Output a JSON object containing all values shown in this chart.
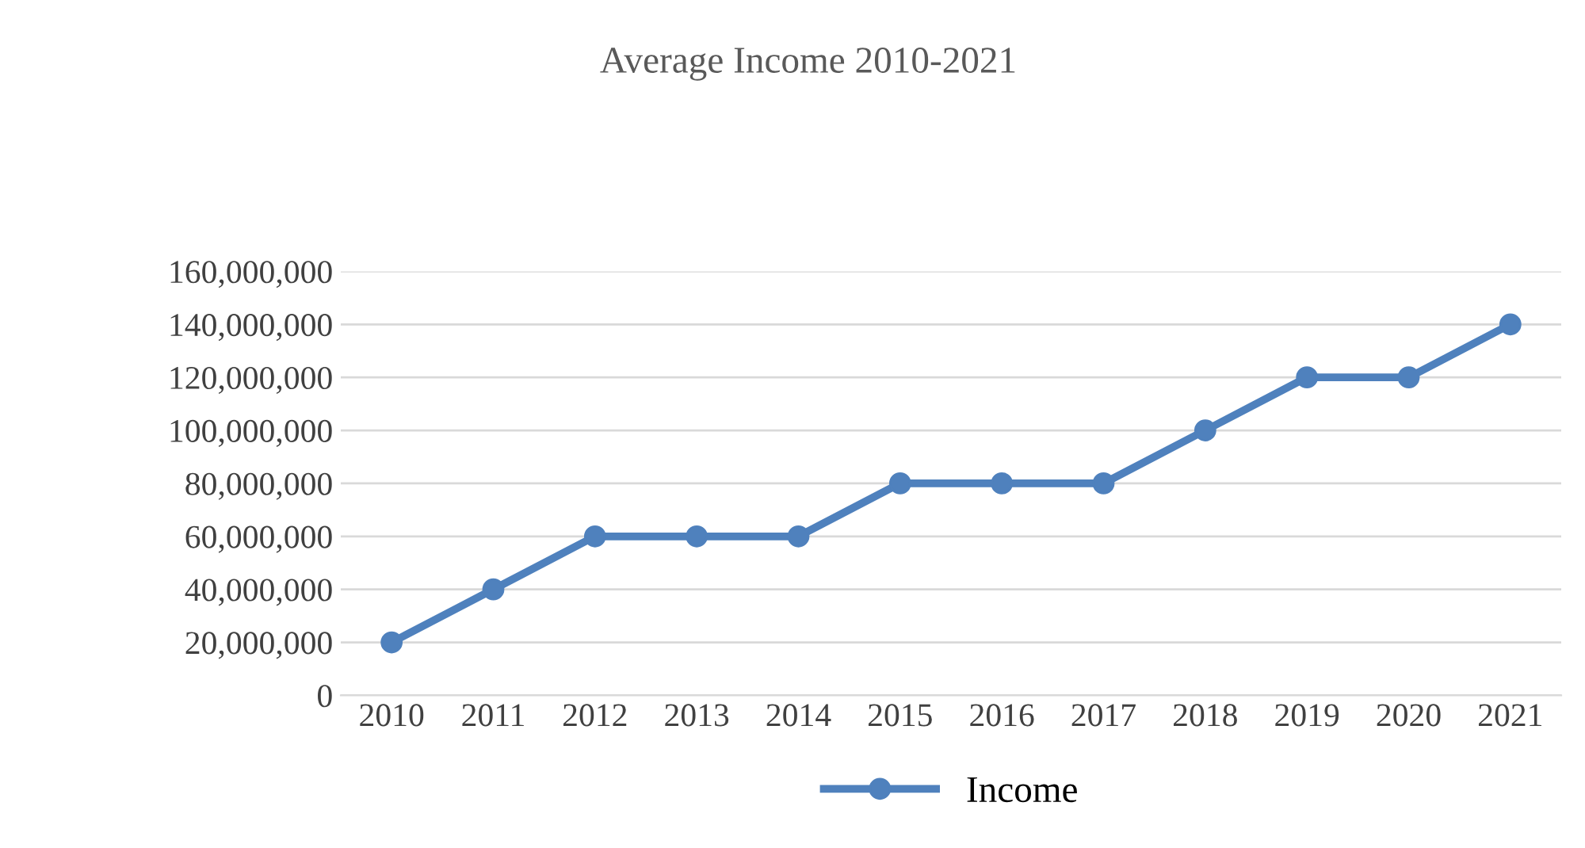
{
  "chart_data": {
    "type": "line",
    "title": "Average Income 2010-2021",
    "categories": [
      "2010",
      "2011",
      "2012",
      "2013",
      "2014",
      "2015",
      "2016",
      "2017",
      "2018",
      "2019",
      "2020",
      "2021"
    ],
    "series": [
      {
        "name": "Income",
        "color": "#4f81bd",
        "values": [
          20000000,
          40000000,
          60000000,
          60000000,
          60000000,
          80000000,
          80000000,
          80000000,
          100000000,
          120000000,
          120000000,
          140000000
        ]
      }
    ],
    "ylim": [
      0,
      160000000
    ],
    "yticks": [
      {
        "value": 0,
        "label": "0"
      },
      {
        "value": 20000000,
        "label": "20,000,000"
      },
      {
        "value": 40000000,
        "label": "40,000,000"
      },
      {
        "value": 60000000,
        "label": "60,000,000"
      },
      {
        "value": 80000000,
        "label": "80,000,000"
      },
      {
        "value": 100000000,
        "label": "100,000,000"
      },
      {
        "value": 120000000,
        "label": "120,000,000"
      },
      {
        "value": 140000000,
        "label": "140,000,000"
      },
      {
        "value": 160000000,
        "label": "160,000,000"
      }
    ],
    "grid": "y",
    "legend": "bottom",
    "marker": "circle",
    "line_style": "solid"
  }
}
